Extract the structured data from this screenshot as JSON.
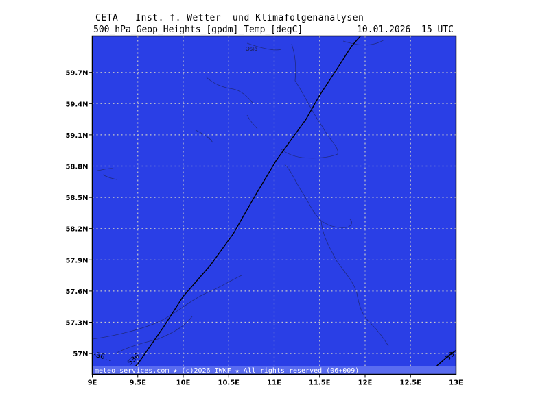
{
  "header": {
    "title": "CETA — Inst. f. Wetter— und Klimafolgenanalysen —",
    "field": "500_hPa_Geop_Heights_[gpdm]_Temp_[degC]",
    "valid_time": "10.01.2026  15 UTC"
  },
  "colors": {
    "map_fill": "#2a3fe6",
    "footer_band": "#5a6cf0",
    "grid": "#c8c8c8",
    "coast": "#202a80",
    "contour": "#000000"
  },
  "map": {
    "lon_range": [
      9,
      13
    ],
    "lat_range": [
      56.8,
      60.05
    ],
    "lat_ticks": [
      {
        "value": 57.0,
        "label": "57N"
      },
      {
        "value": 57.3,
        "label": "57.3N"
      },
      {
        "value": 57.6,
        "label": "57.6N"
      },
      {
        "value": 57.9,
        "label": "57.9N"
      },
      {
        "value": 58.2,
        "label": "58.2N"
      },
      {
        "value": 58.5,
        "label": "58.5N"
      },
      {
        "value": 58.8,
        "label": "58.8N"
      },
      {
        "value": 59.1,
        "label": "59.1N"
      },
      {
        "value": 59.4,
        "label": "59.4N"
      },
      {
        "value": 59.7,
        "label": "59.7N"
      }
    ],
    "lon_ticks": [
      {
        "value": 9.0,
        "label": "9E"
      },
      {
        "value": 9.5,
        "label": "9.5E"
      },
      {
        "value": 10.0,
        "label": "10E"
      },
      {
        "value": 10.5,
        "label": "10.5E"
      },
      {
        "value": 11.0,
        "label": "11E"
      },
      {
        "value": 11.5,
        "label": "11.5E"
      },
      {
        "value": 12.0,
        "label": "12E"
      },
      {
        "value": 12.5,
        "label": "12.5E"
      },
      {
        "value": 13.0,
        "label": "13E"
      }
    ],
    "cities": [
      {
        "name": "Oslo",
        "lon": 10.75,
        "lat": 59.91
      }
    ],
    "contours": [
      {
        "label": "536",
        "label_at": {
          "lon": 9.47,
          "lat": 56.93
        },
        "points": [
          [
            9.38,
            56.8
          ],
          [
            9.5,
            56.9
          ],
          [
            9.62,
            57.05
          ],
          [
            9.78,
            57.25
          ],
          [
            10.0,
            57.55
          ],
          [
            10.3,
            57.85
          ],
          [
            10.55,
            58.15
          ],
          [
            10.78,
            58.5
          ],
          [
            11.02,
            58.85
          ],
          [
            11.2,
            59.07
          ],
          [
            11.35,
            59.25
          ],
          [
            11.5,
            59.48
          ],
          [
            11.68,
            59.72
          ],
          [
            11.85,
            59.95
          ],
          [
            11.95,
            60.05
          ]
        ]
      },
      {
        "label": "53",
        "label_at": {
          "lon": 12.95,
          "lat": 56.96
        },
        "points": [
          [
            12.7,
            56.8
          ],
          [
            12.8,
            56.89
          ],
          [
            12.92,
            56.98
          ],
          [
            13.0,
            57.03
          ]
        ]
      }
    ],
    "temp_isotherm": {
      "label": "-36",
      "label_at": {
        "lon": 9.07,
        "lat": 56.96
      },
      "points": [
        [
          9.15,
          56.94
        ],
        [
          9.22,
          56.93
        ]
      ]
    }
  },
  "footer": {
    "text": "meteo—services.com ★ (c)2026 IWKF ★ All rights reserved (06+009)"
  }
}
